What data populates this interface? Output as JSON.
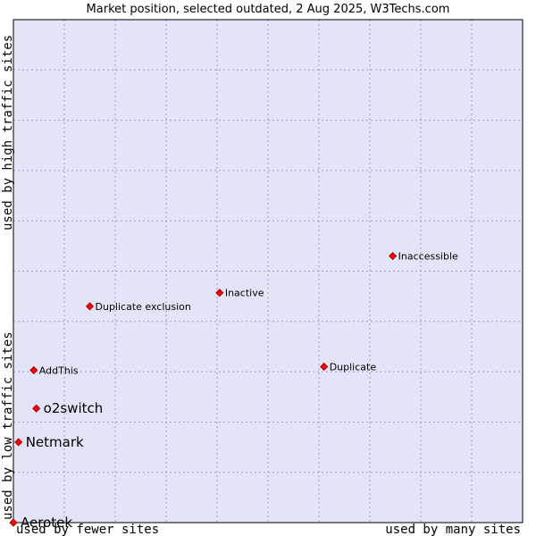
{
  "chart_data": {
    "type": "scatter",
    "title": "Market position, selected outdated, 2 Aug 2025, W3Techs.com",
    "xlabel_left": "used by fewer sites",
    "xlabel_right": "used by many sites",
    "ylabel_bottom": "used by low traffic sites",
    "ylabel_top": "used by high traffic sites",
    "xlim": [
      0,
      10
    ],
    "ylim": [
      0,
      10
    ],
    "grid": true,
    "colors": {
      "plot_background": "#e4e4f8",
      "grid": "#a0a0c0",
      "marker": "#ff0000",
      "marker_edge": "#990000"
    },
    "points": [
      {
        "label": "Inaccessible",
        "x": 7.45,
        "y": 5.3,
        "size": "small"
      },
      {
        "label": "Inactive",
        "x": 4.05,
        "y": 4.57,
        "size": "small"
      },
      {
        "label": "Duplicate exclusion",
        "x": 1.5,
        "y": 4.3,
        "size": "small"
      },
      {
        "label": "Duplicate",
        "x": 6.1,
        "y": 3.1,
        "size": "small"
      },
      {
        "label": "AddThis",
        "x": 0.4,
        "y": 3.03,
        "size": "small"
      },
      {
        "label": "o2switch",
        "x": 0.45,
        "y": 2.27,
        "size": "big"
      },
      {
        "label": "Netmark",
        "x": 0.1,
        "y": 1.6,
        "size": "big"
      },
      {
        "label": "Aerotek",
        "x": 0.0,
        "y": 0.0,
        "size": "big"
      }
    ]
  }
}
